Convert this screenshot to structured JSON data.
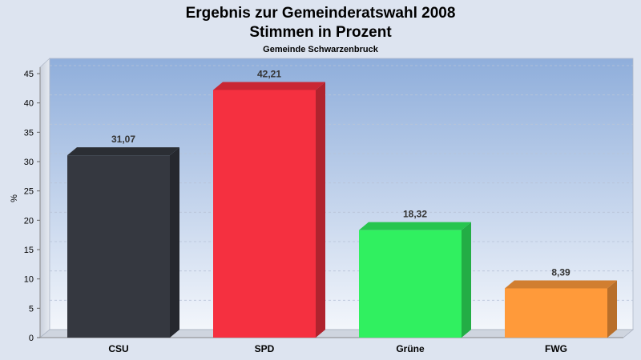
{
  "chart_data": {
    "type": "bar",
    "title": "Ergebnis zur Gemeinderatswahl 2008",
    "title_line2": "Stimmen in Prozent",
    "subtitle": "Gemeinde Schwarzenbruck",
    "xlabel": "",
    "ylabel": "%",
    "ylim": [
      0,
      47
    ],
    "yticks": [
      0,
      5,
      10,
      15,
      20,
      25,
      30,
      35,
      40,
      45
    ],
    "grid": true,
    "categories": [
      "CSU",
      "SPD",
      "Grüne",
      "FWG"
    ],
    "values": [
      31.07,
      42.21,
      18.32,
      8.39
    ],
    "value_labels": [
      "31,07",
      "42,21",
      "18,32",
      "8,39"
    ],
    "colors": [
      "#353840",
      "#f53040",
      "#30f060",
      "#ff9a3a"
    ]
  }
}
